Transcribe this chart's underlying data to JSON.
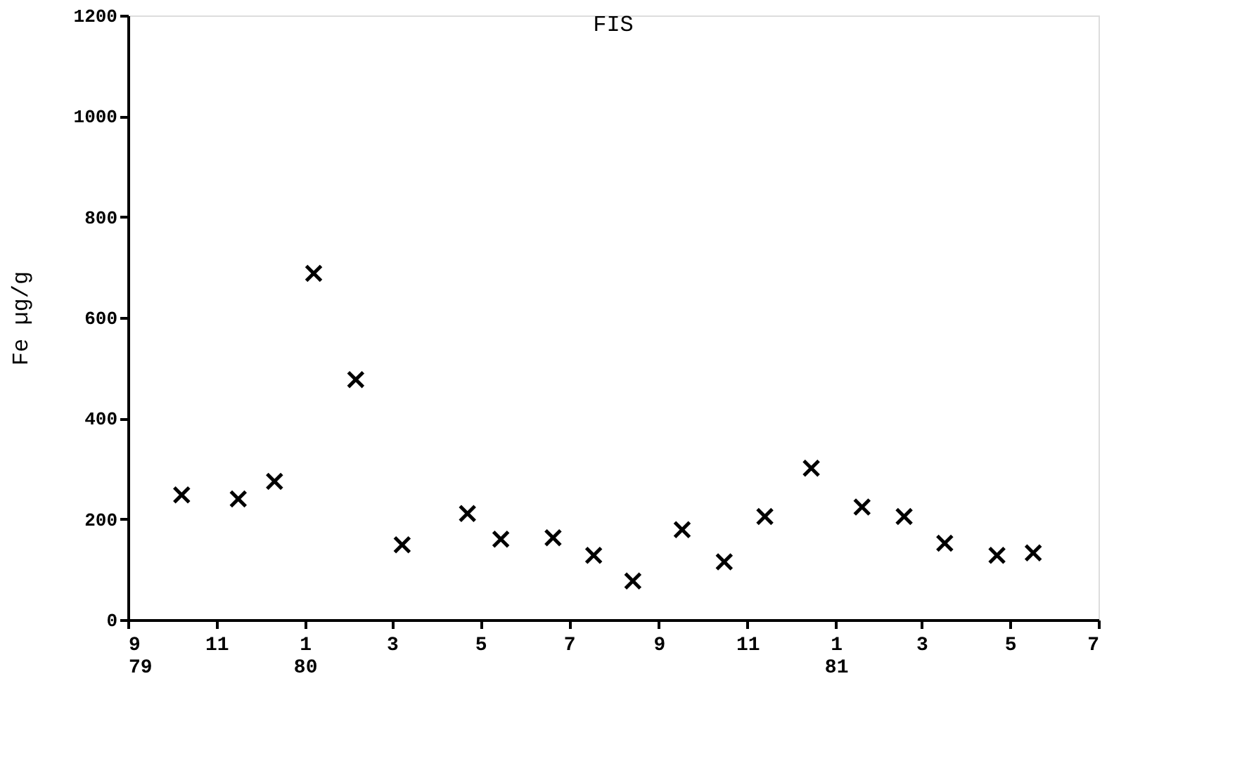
{
  "chart_data": {
    "type": "scatter",
    "title": "FIS",
    "ylabel": "Fe µg/g",
    "marker": "cross",
    "grid": false,
    "x": [
      "1979-10-08",
      "1979-11-16",
      "1979-12-11",
      "1980-01-07",
      "1980-02-05",
      "1980-03-08",
      "1980-04-22",
      "1980-05-15",
      "1980-06-20",
      "1980-07-18",
      "1980-08-14",
      "1980-09-17",
      "1980-10-16",
      "1980-11-13",
      "1980-12-15",
      "1981-01-19",
      "1981-02-17",
      "1981-03-17",
      "1981-04-22",
      "1981-05-17"
    ],
    "series": [
      {
        "color": "#000000",
        "values": [
          248,
          240,
          275,
          688,
          477,
          149,
          211,
          160,
          163,
          128,
          77,
          179,
          115,
          205,
          301,
          224,
          205,
          152,
          128,
          133
        ]
      }
    ],
    "xlim": [
      "1979-09-01",
      "1981-07-01"
    ],
    "xticks": [
      {
        "value": "1979-09-01",
        "label": "9\n79"
      },
      {
        "value": "1979-11-01",
        "label": "11"
      },
      {
        "value": "1980-01-01",
        "label": "1\n80"
      },
      {
        "value": "1980-03-01",
        "label": "3"
      },
      {
        "value": "1980-05-01",
        "label": "5"
      },
      {
        "value": "1980-07-01",
        "label": "7"
      },
      {
        "value": "1980-09-01",
        "label": "9"
      },
      {
        "value": "1980-11-01",
        "label": "11"
      },
      {
        "value": "1981-01-01",
        "label": "1\n81"
      },
      {
        "value": "1981-03-01",
        "label": "3"
      },
      {
        "value": "1981-05-01",
        "label": "5"
      },
      {
        "value": "1981-07-01",
        "label": "7"
      }
    ],
    "ylim": [
      0,
      1200
    ],
    "yticks": [
      0,
      200,
      400,
      600,
      800,
      1000,
      1200
    ]
  }
}
